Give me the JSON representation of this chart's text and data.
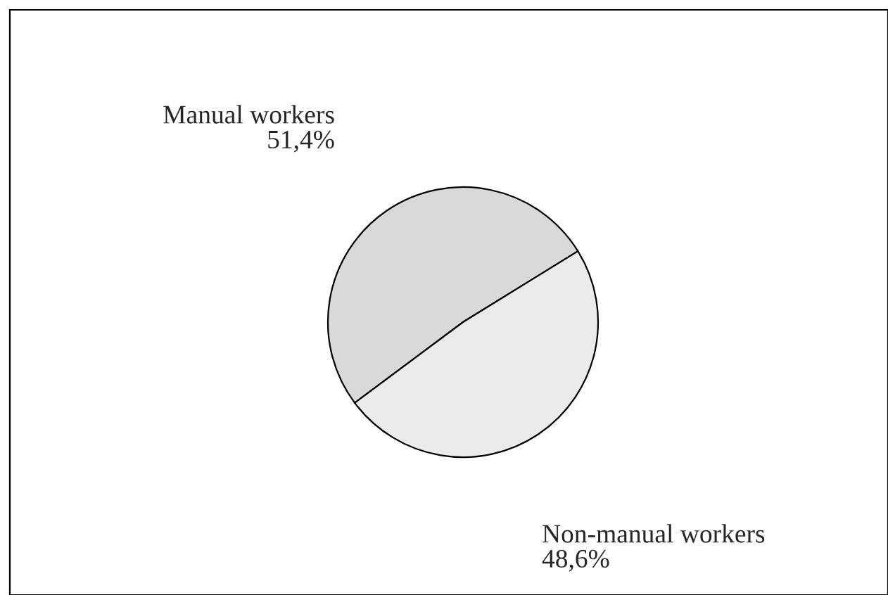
{
  "chart_data": {
    "type": "pie",
    "categories": [
      "Manual workers",
      "Non-manual workers"
    ],
    "values": [
      51.4,
      48.6
    ],
    "value_labels": [
      "51,4%",
      "48,6%"
    ],
    "colors": [
      "#d9d9d9",
      "#ebebeb"
    ]
  }
}
